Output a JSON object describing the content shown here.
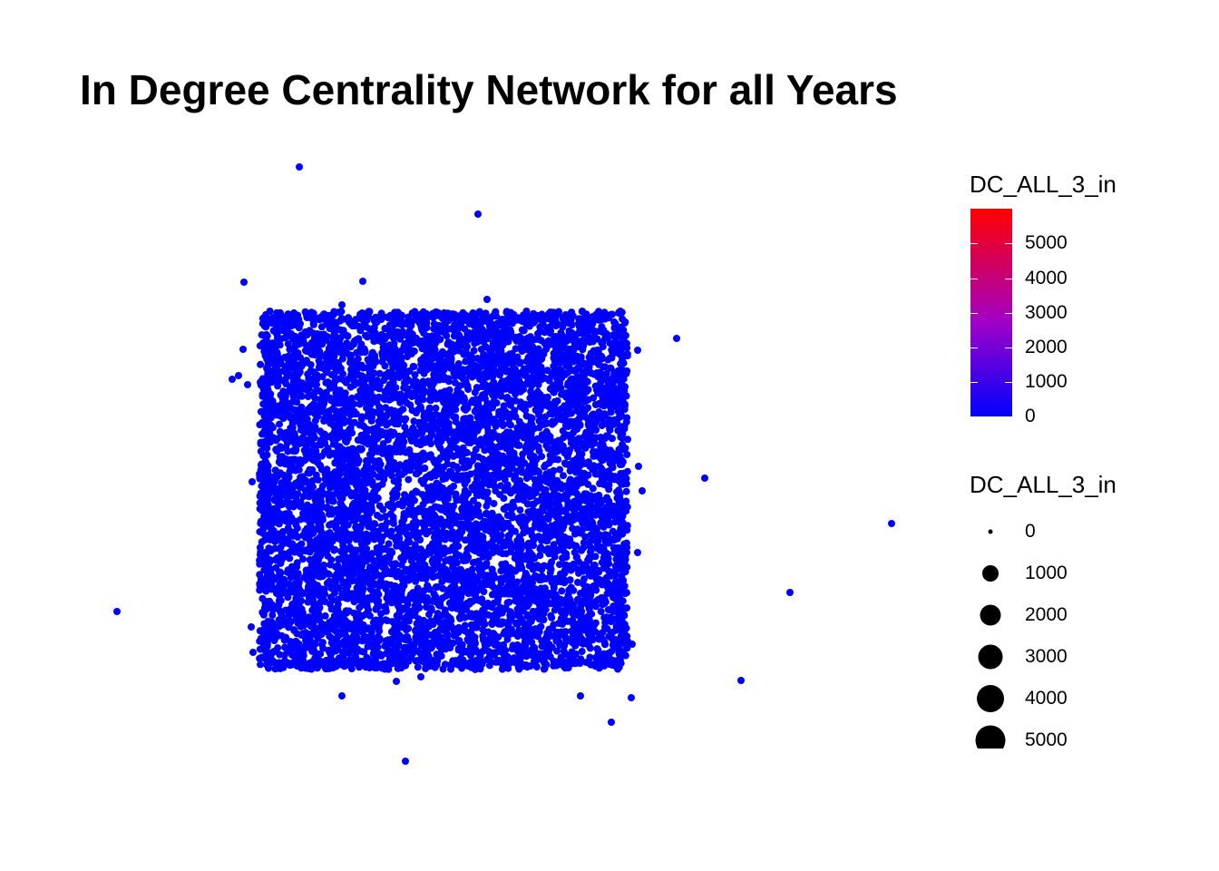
{
  "chart_data": {
    "type": "scatter",
    "title": "In Degree Centrality Network for all Years",
    "xlabel": "",
    "ylabel": "",
    "grid": false,
    "point_color": "#0000ff",
    "description_of_points": "network nodes, nearly all with in-degree near 0",
    "legend": {
      "placement": "right",
      "color_scale": {
        "title": "DC_ALL_3_in",
        "low_color": "#0000ff",
        "high_color": "#ff0000",
        "breaks": [
          "0",
          "1000",
          "2000",
          "3000",
          "4000",
          "5000"
        ]
      },
      "size_scale": {
        "title": "DC_ALL_3_in",
        "breaks": [
          "0",
          "1000",
          "2000",
          "3000",
          "4000",
          "5000"
        ],
        "color": "#000000"
      }
    }
  }
}
